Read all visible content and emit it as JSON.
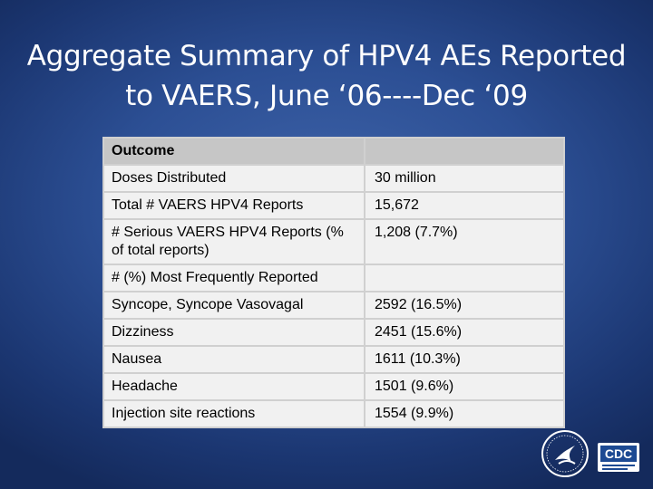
{
  "slide": {
    "title_line1": "Aggregate Summary of HPV4 AEs Reported",
    "title_line2": "to VAERS, June ‘06----Dec ‘09"
  },
  "table": {
    "header": {
      "col1": "Outcome",
      "col2": ""
    },
    "rows": [
      {
        "outcome": "Doses Distributed",
        "value": "30 million"
      },
      {
        "outcome": "Total # VAERS HPV4 Reports",
        "value": "15,672"
      },
      {
        "outcome": "# Serious VAERS HPV4 Reports (% of total reports)",
        "value": "1,208 (7.7%)"
      },
      {
        "outcome": "# (%) Most Frequently Reported",
        "value": ""
      },
      {
        "outcome": "Syncope, Syncope Vasovagal",
        "value": "2592 (16.5%)"
      },
      {
        "outcome": "Dizziness",
        "value": "2451 (15.6%)"
      },
      {
        "outcome": "Nausea",
        "value": "1611 (10.3%)"
      },
      {
        "outcome": "Headache",
        "value": "1501 (9.6%)"
      },
      {
        "outcome": "Injection site reactions",
        "value": "1554 (9.9%)"
      }
    ]
  },
  "logos": {
    "cdc_text": "CDC",
    "seal_icon": "hhs-seal-icon"
  }
}
